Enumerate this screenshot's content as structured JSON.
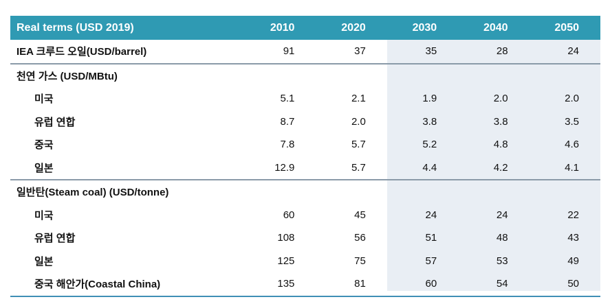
{
  "header": {
    "label": "Real terms (USD 2019)",
    "years": [
      "2010",
      "2020",
      "2030",
      "2040",
      "2050"
    ]
  },
  "rows": [
    {
      "label": "IEA 크루드 오일(USD/barrel)",
      "values": [
        "91",
        "37",
        "35",
        "28",
        "24"
      ],
      "sub": false,
      "sep": false
    },
    {
      "label": "천연 가스 (USD/MBtu)",
      "values": [
        "",
        "",
        "",
        "",
        ""
      ],
      "sub": false,
      "sep": true
    },
    {
      "label": "미국",
      "values": [
        "5.1",
        "2.1",
        "1.9",
        "2.0",
        "2.0"
      ],
      "sub": true,
      "sep": false
    },
    {
      "label": "유럽 연합",
      "values": [
        "8.7",
        "2.0",
        "3.8",
        "3.8",
        "3.5"
      ],
      "sub": true,
      "sep": false
    },
    {
      "label": "중국",
      "values": [
        "7.8",
        "5.7",
        "5.2",
        "4.8",
        "4.6"
      ],
      "sub": true,
      "sep": false
    },
    {
      "label": "일본",
      "values": [
        "12.9",
        "5.7",
        "4.4",
        "4.2",
        "4.1"
      ],
      "sub": true,
      "sep": false
    },
    {
      "label": "일반탄(Steam coal) (USD/tonne)",
      "values": [
        "",
        "",
        "",
        "",
        ""
      ],
      "sub": false,
      "sep": true
    },
    {
      "label": "미국",
      "values": [
        "60",
        "45",
        "24",
        "24",
        "22"
      ],
      "sub": true,
      "sep": false
    },
    {
      "label": "유럽 연합",
      "values": [
        "108",
        "56",
        "51",
        "48",
        "43"
      ],
      "sub": true,
      "sep": false
    },
    {
      "label": "일본",
      "values": [
        "125",
        "75",
        "57",
        "53",
        "49"
      ],
      "sub": true,
      "sep": false
    },
    {
      "label": "중국 해안가(Coastal China)",
      "values": [
        "135",
        "81",
        "60",
        "54",
        "50"
      ],
      "sub": true,
      "sep": false
    }
  ]
}
